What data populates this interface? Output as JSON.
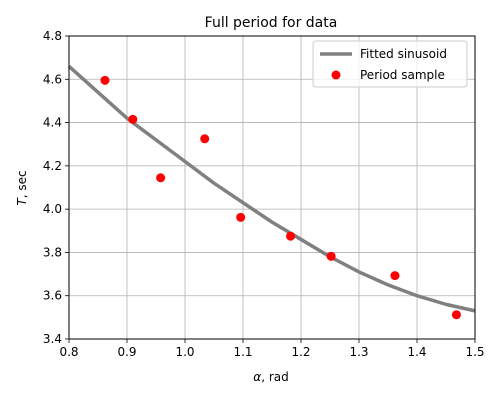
{
  "chart_data": {
    "type": "scatter",
    "title": "Full period for data",
    "xlabel_symbol": "α",
    "xlabel_unit": ", rad",
    "ylabel_symbol": "T",
    "ylabel_unit": ", sec",
    "xlim": [
      0.8,
      1.5
    ],
    "ylim": [
      3.4,
      4.8
    ],
    "xticks": [
      0.8,
      0.9,
      1.0,
      1.1,
      1.2,
      1.3,
      1.4,
      1.5
    ],
    "yticks": [
      3.4,
      3.6,
      3.8,
      4.0,
      4.2,
      4.4,
      4.6,
      4.8
    ],
    "grid": true,
    "legend_position": "top-right",
    "series": [
      {
        "name": "Fitted sinusoid",
        "kind": "line",
        "color": "#808080",
        "x": [
          0.8,
          0.85,
          0.9,
          0.95,
          1.0,
          1.05,
          1.1,
          1.15,
          1.2,
          1.25,
          1.3,
          1.35,
          1.4,
          1.45,
          1.5
        ],
        "y": [
          4.66,
          4.54,
          4.42,
          4.32,
          4.22,
          4.12,
          4.03,
          3.94,
          3.86,
          3.78,
          3.71,
          3.65,
          3.6,
          3.56,
          3.53
        ]
      },
      {
        "name": "Period sample",
        "kind": "scatter",
        "color": "#ff0000",
        "x": [
          0.862,
          0.91,
          0.958,
          1.034,
          1.096,
          1.182,
          1.252,
          1.362,
          1.468
        ],
        "y": [
          4.595,
          4.415,
          4.145,
          4.325,
          3.962,
          3.875,
          3.782,
          3.693,
          3.512
        ]
      }
    ]
  }
}
